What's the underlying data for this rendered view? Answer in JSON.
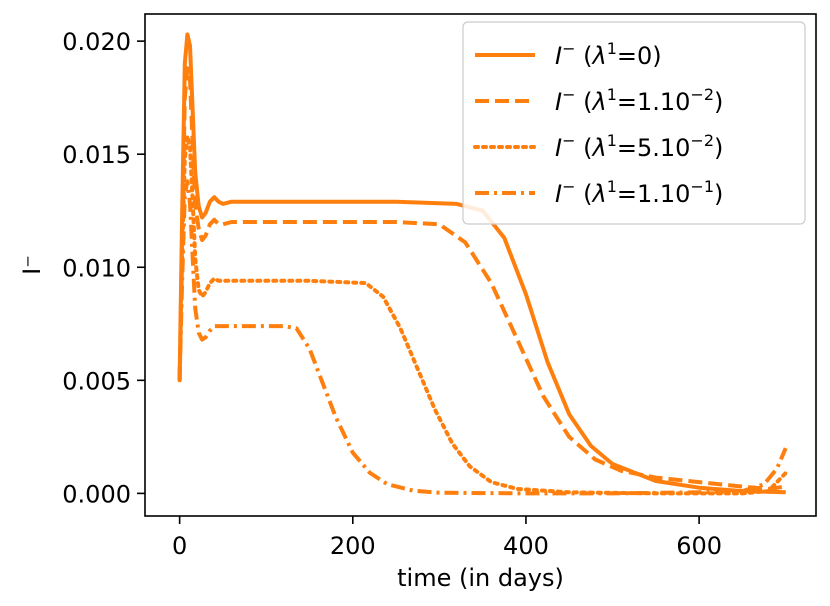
{
  "chart_data": {
    "type": "line",
    "xlabel": "time (in days)",
    "ylabel": "I⁻",
    "xlim": [
      -40,
      735
    ],
    "ylim": [
      -0.001,
      0.0212
    ],
    "xticks": [
      0,
      200,
      400,
      600
    ],
    "xtick_labels": [
      "0",
      "200",
      "400",
      "600"
    ],
    "yticks": [
      0.0,
      0.005,
      0.01,
      0.015,
      0.02
    ],
    "ytick_labels": [
      "0.000",
      "0.005",
      "0.010",
      "0.015",
      "0.020"
    ],
    "grid": false,
    "legend_position": "top-right",
    "color": "#ff7f0e",
    "series": [
      {
        "name": "I⁻ (λ¹=0)",
        "legend": {
          "var": "I",
          "sup1": "−",
          "greek": "λ",
          "sup2": "1",
          "rest": "=0",
          "exp": ""
        },
        "dash": "solid",
        "x": [
          0,
          3,
          6,
          9,
          12,
          15,
          18,
          22,
          26,
          30,
          35,
          40,
          45,
          50,
          60,
          80,
          150,
          250,
          320,
          350,
          375,
          400,
          425,
          450,
          475,
          500,
          550,
          600,
          650,
          700
        ],
        "values": [
          0.005,
          0.0125,
          0.019,
          0.0203,
          0.0198,
          0.017,
          0.0142,
          0.0127,
          0.0122,
          0.0124,
          0.0129,
          0.0131,
          0.0129,
          0.0128,
          0.0129,
          0.0129,
          0.0129,
          0.0129,
          0.0128,
          0.0125,
          0.0113,
          0.0088,
          0.0058,
          0.0035,
          0.0021,
          0.0013,
          0.00055,
          0.00025,
          0.0001,
          5e-05
        ]
      },
      {
        "name": "I⁻ (λ¹=1.10⁻²)",
        "legend": {
          "var": "I",
          "sup1": "−",
          "greek": "λ",
          "sup2": "1",
          "rest": "=1.10",
          "exp": "−2"
        },
        "dash": "dashed",
        "x": [
          0,
          3,
          6,
          9,
          12,
          15,
          18,
          22,
          26,
          30,
          35,
          40,
          45,
          50,
          60,
          80,
          150,
          250,
          300,
          330,
          360,
          390,
          420,
          450,
          480,
          510,
          550,
          600,
          650,
          680,
          700
        ],
        "values": [
          0.005,
          0.0115,
          0.0175,
          0.0188,
          0.0183,
          0.0155,
          0.0128,
          0.0117,
          0.0112,
          0.0114,
          0.0119,
          0.0121,
          0.0119,
          0.0119,
          0.012,
          0.012,
          0.012,
          0.012,
          0.0119,
          0.0111,
          0.0093,
          0.0068,
          0.0043,
          0.0025,
          0.0015,
          0.001,
          0.0007,
          0.0005,
          0.0003,
          0.0002,
          0.0003
        ]
      },
      {
        "name": "I⁻ (λ¹=5.10⁻²)",
        "legend": {
          "var": "I",
          "sup1": "−",
          "greek": "λ",
          "sup2": "1",
          "rest": "=5.10",
          "exp": "−2"
        },
        "dash": "dotted",
        "x": [
          0,
          3,
          6,
          9,
          12,
          15,
          18,
          22,
          26,
          30,
          35,
          40,
          45,
          50,
          60,
          80,
          150,
          215,
          235,
          255,
          275,
          295,
          315,
          335,
          360,
          390,
          450,
          550,
          650,
          680,
          700
        ],
        "values": [
          0.005,
          0.0105,
          0.0148,
          0.0158,
          0.0153,
          0.013,
          0.0104,
          0.009,
          0.0087,
          0.0089,
          0.0093,
          0.0095,
          0.0094,
          0.0094,
          0.0094,
          0.0094,
          0.0094,
          0.0093,
          0.0087,
          0.0073,
          0.0055,
          0.0037,
          0.0022,
          0.0012,
          0.0005,
          0.0002,
          5e-05,
          0.0,
          0.0,
          0.0001,
          0.0009
        ]
      },
      {
        "name": "I⁻ (λ¹=1.10⁻¹)",
        "legend": {
          "var": "I",
          "sup1": "−",
          "greek": "λ",
          "sup2": "1",
          "rest": "=1.10",
          "exp": "−1"
        },
        "dash": "dashdot",
        "x": [
          0,
          3,
          6,
          9,
          12,
          15,
          18,
          22,
          26,
          30,
          35,
          40,
          45,
          50,
          60,
          80,
          120,
          135,
          150,
          165,
          180,
          200,
          220,
          240,
          270,
          300,
          400,
          500,
          600,
          650,
          675,
          690,
          700
        ],
        "values": [
          0.005,
          0.0095,
          0.0132,
          0.0138,
          0.0128,
          0.0105,
          0.0082,
          0.0071,
          0.0068,
          0.0069,
          0.0072,
          0.0074,
          0.0074,
          0.0074,
          0.0074,
          0.0074,
          0.0074,
          0.0073,
          0.0064,
          0.0049,
          0.0034,
          0.0018,
          0.0009,
          0.0004,
          0.00012,
          3e-05,
          0.0,
          0.0,
          5e-05,
          0.0001,
          0.0004,
          0.0011,
          0.002
        ]
      }
    ]
  }
}
